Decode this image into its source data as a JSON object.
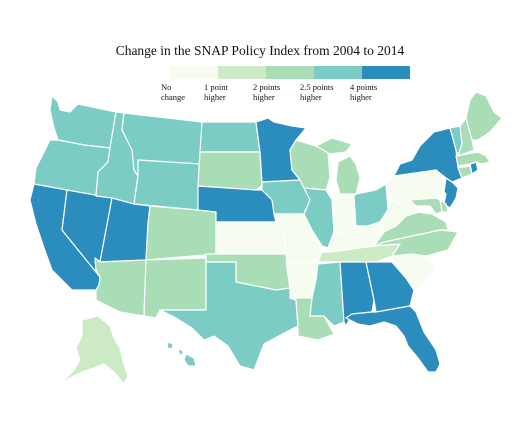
{
  "title": "Change in the SNAP Policy Index from 2004 to 2014",
  "legend": {
    "items": [
      {
        "line1": "No",
        "line2": "change",
        "color": "#f7fcf0"
      },
      {
        "line1": "1 point",
        "line2": "higher",
        "color": "#ccebc5"
      },
      {
        "line1": "2 points",
        "line2": "higher",
        "color": "#a8ddb5"
      },
      {
        "line1": "2.5 points",
        "line2": "higher",
        "color": "#7bccc4"
      },
      {
        "line1": "4 points",
        "line2": "higher",
        "color": "#2b8cbe"
      }
    ]
  },
  "palette": {
    "none": "#f7fcf0",
    "one": "#ccebc5",
    "two": "#a8ddb5",
    "twohalf": "#7bccc4",
    "four": "#2b8cbe"
  },
  "states": {
    "WA": "twohalf",
    "OR": "twohalf",
    "CA": "four",
    "NV": "four",
    "ID": "twohalf",
    "MT": "twohalf",
    "WY": "twohalf",
    "UT": "four",
    "AZ": "two",
    "CO": "two",
    "NM": "two",
    "ND": "twohalf",
    "SD": "two",
    "NE": "four",
    "KS": "none",
    "OK": "two",
    "TX": "twohalf",
    "MN": "four",
    "IA": "twohalf",
    "MO": "none",
    "AR": "none",
    "LA": "two",
    "WI": "two",
    "IL": "twohalf",
    "MI": "two",
    "IN": "none",
    "OH": "twohalf",
    "KY": "none",
    "TN": "one",
    "MS": "twohalf",
    "AL": "four",
    "GA": "four",
    "FL": "four",
    "SC": "none",
    "NC": "two",
    "VA": "two",
    "WV": "none",
    "PA": "none",
    "NY": "four",
    "VT": "twohalf",
    "NH": "two",
    "ME": "two",
    "MA": "two",
    "RI": "four",
    "CT": "two",
    "NJ": "four",
    "DE": "two",
    "MD": "two",
    "AK": "one",
    "HI": "twohalf"
  }
}
